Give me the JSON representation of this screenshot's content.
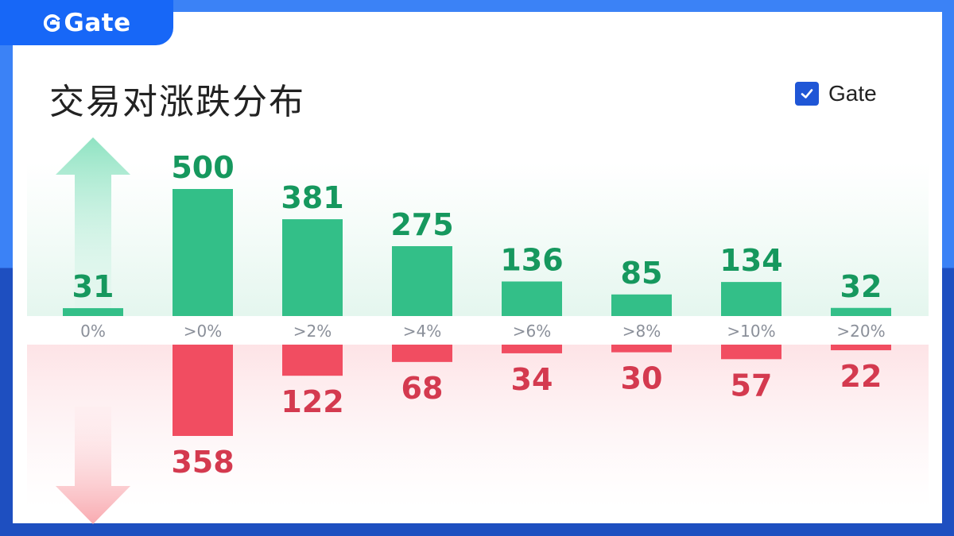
{
  "brand": {
    "name": "Gate"
  },
  "title": "交易对涨跌分布",
  "legend": {
    "label": "Gate",
    "checked": true
  },
  "colors": {
    "up": "#33bf88",
    "up_text": "#16985e",
    "down": "#f14d61",
    "down_text": "#d43a4f",
    "brand": "#1767f7"
  },
  "chart_data": {
    "type": "bar",
    "categories": [
      "0%",
      ">0%",
      ">2%",
      ">4%",
      ">6%",
      ">8%",
      ">10%",
      ">20%"
    ],
    "series": [
      {
        "name": "Gate",
        "direction": "up",
        "values": [
          31,
          500,
          381,
          275,
          136,
          85,
          134,
          32
        ]
      },
      {
        "name": "Gate",
        "direction": "down",
        "values": [
          null,
          358,
          122,
          68,
          34,
          30,
          57,
          22
        ]
      }
    ],
    "up_value_labels": [
      "31",
      "500",
      "381",
      "275",
      "136",
      "85",
      "134",
      "32"
    ],
    "down_value_labels": [
      "",
      "358",
      "122",
      "68",
      "34",
      "30",
      "57",
      "22"
    ],
    "title": "交易对涨跌分布",
    "legend_position": "top-right",
    "grid": false
  }
}
